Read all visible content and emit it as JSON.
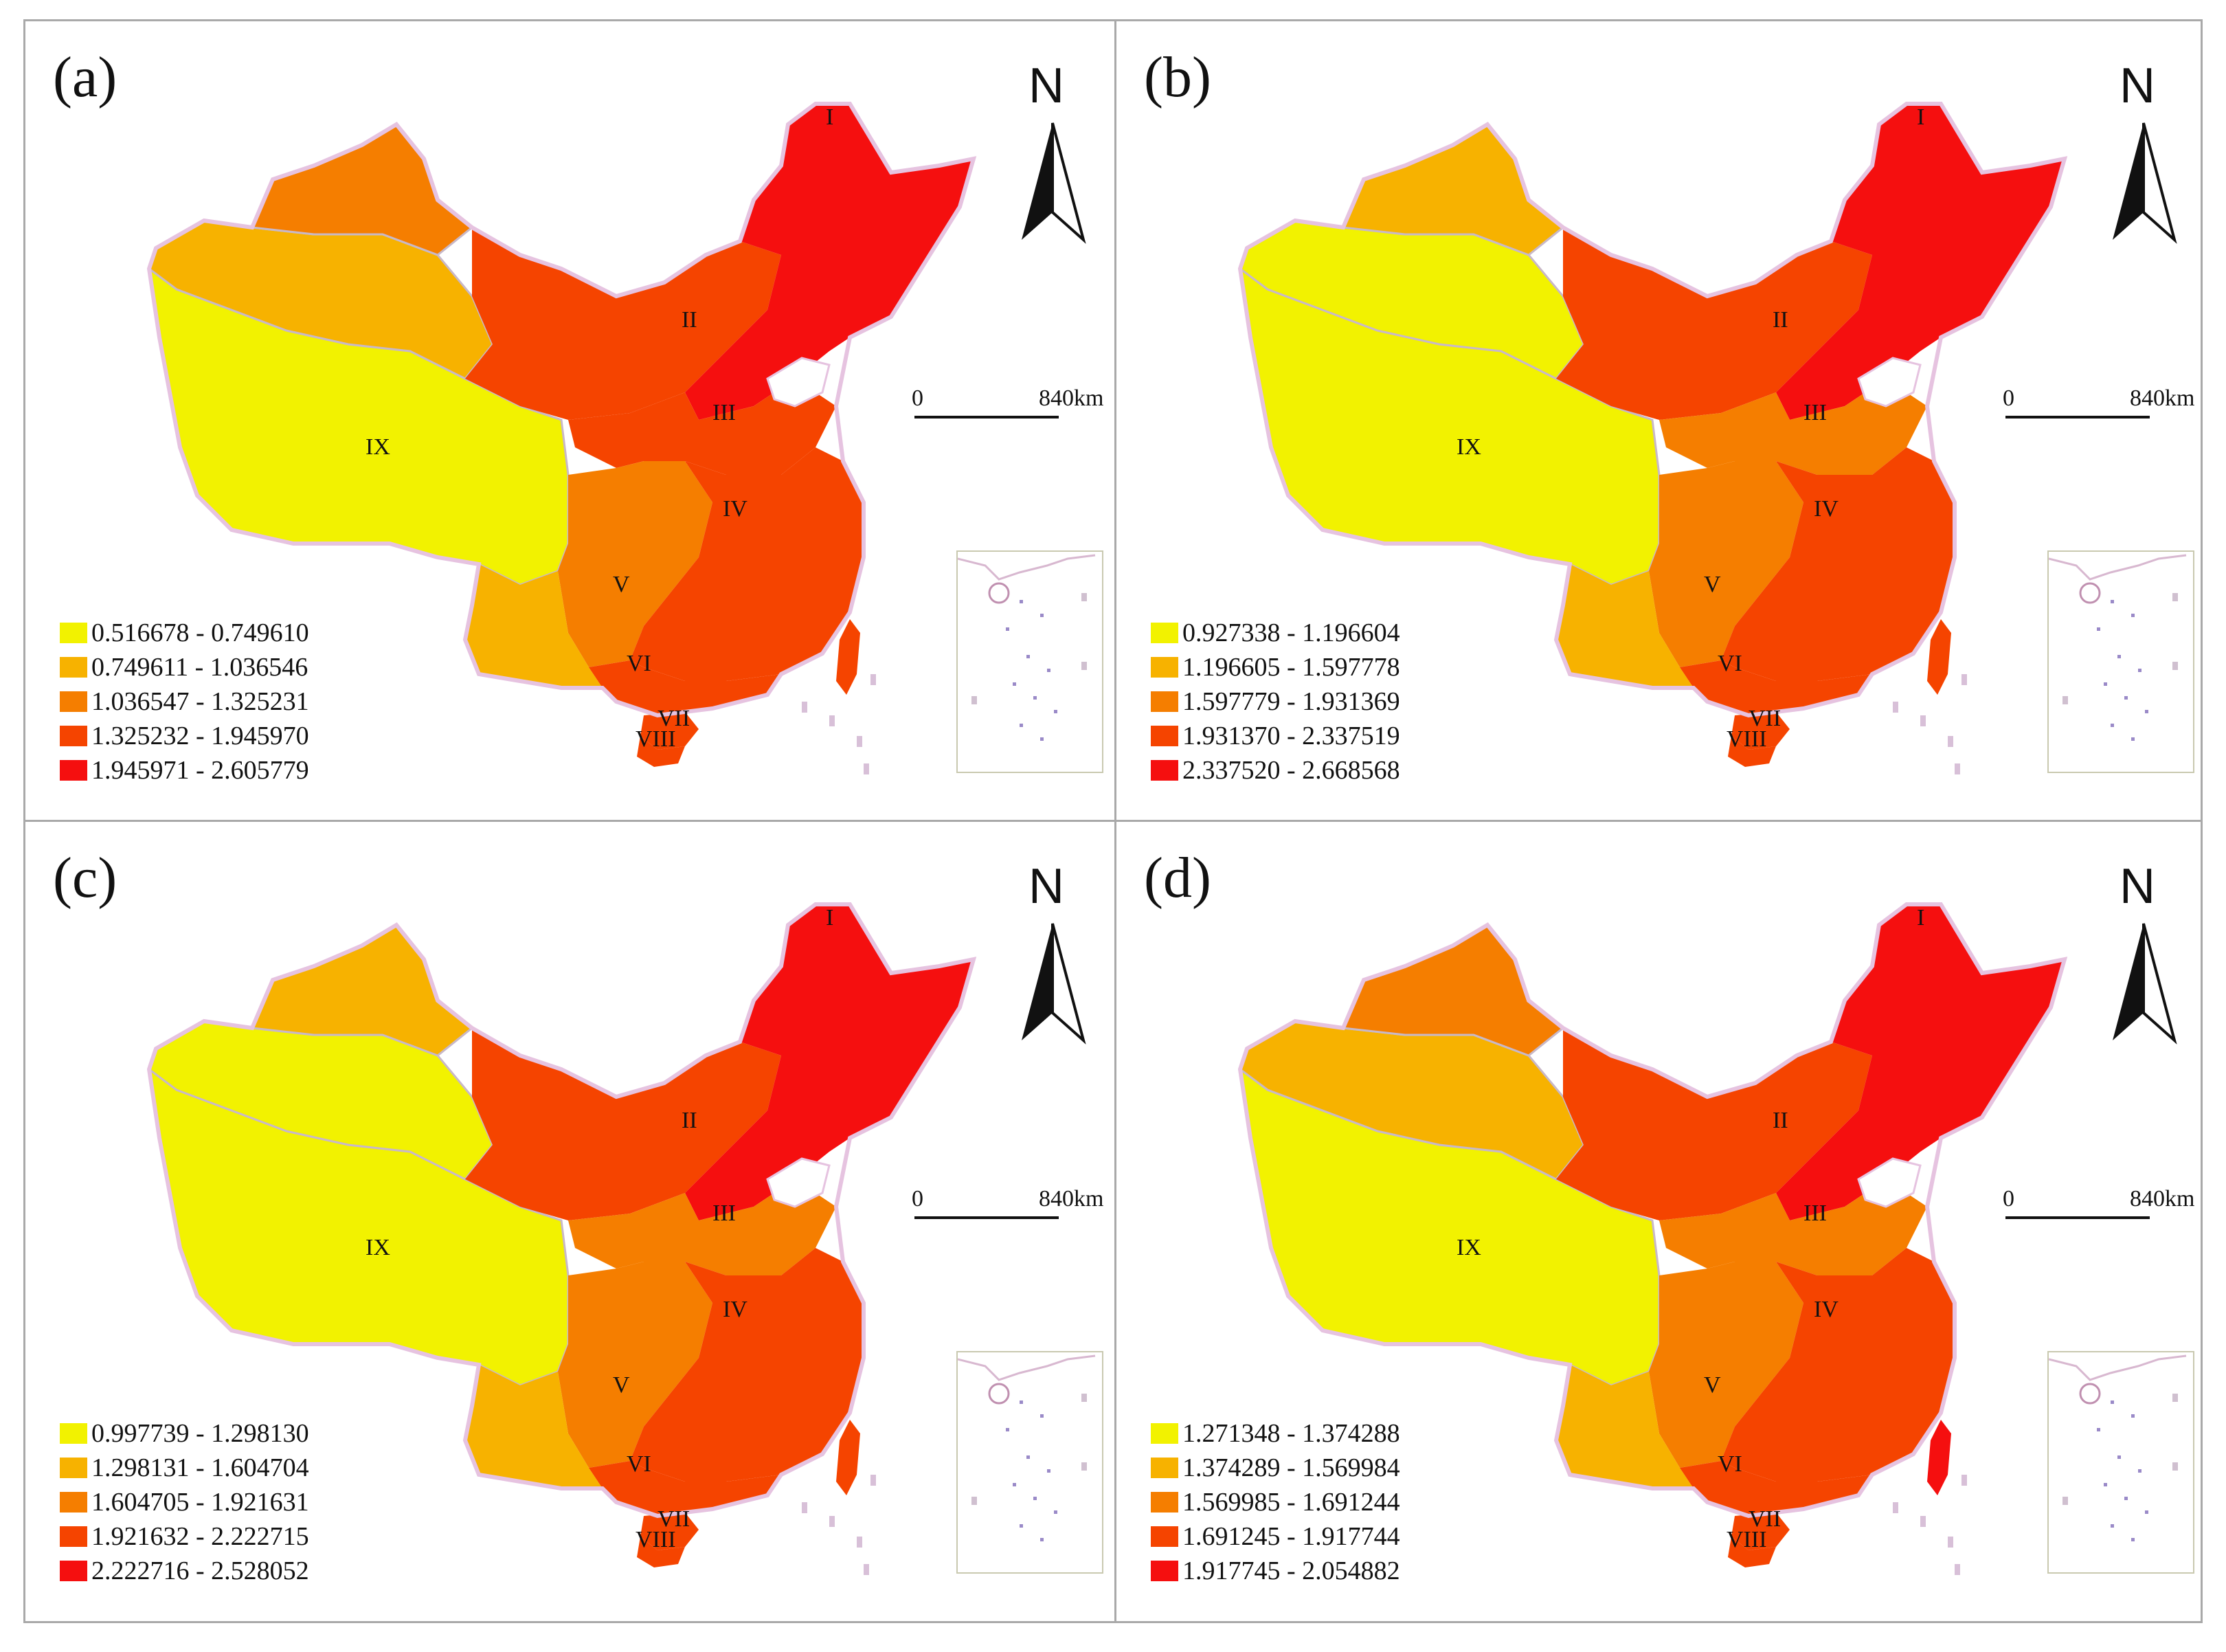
{
  "figure": {
    "north_label": "N",
    "scale_start": "0",
    "scale_end": "840km",
    "colors": [
      "#f2f200",
      "#f7b200",
      "#f57e00",
      "#f54400",
      "#f50f0f"
    ],
    "panels": [
      {
        "label": "(a)",
        "legend": [
          "0.516678 - 0.749610",
          "0.749611 - 1.036546",
          "1.036547 - 1.325231",
          "1.325232 - 1.945970",
          "1.945971 - 2.605779"
        ],
        "region_class": {
          "I": 4,
          "II": 3,
          "III": 3,
          "IV": 3,
          "V": 2,
          "VI": 3,
          "VII": 3,
          "VIII": 3,
          "IX": 0,
          "NW_N": 2,
          "NW_S": 1,
          "SW": 1,
          "TW": 3
        }
      },
      {
        "label": "(b)",
        "legend": [
          "0.927338 - 1.196604",
          "1.196605 - 1.597778",
          "1.597779 - 1.931369",
          "1.931370 - 2.337519",
          "2.337520 - 2.668568"
        ],
        "region_class": {
          "I": 4,
          "II": 3,
          "III": 2,
          "IV": 3,
          "V": 2,
          "VI": 3,
          "VII": 3,
          "VIII": 3,
          "IX": 0,
          "NW_N": 1,
          "NW_S": 0,
          "SW": 1,
          "TW": 3
        }
      },
      {
        "label": "(c)",
        "legend": [
          "0.997739 - 1.298130",
          "1.298131 - 1.604704",
          "1.604705 - 1.921631",
          "1.921632 - 2.222715",
          "2.222716 - 2.528052"
        ],
        "region_class": {
          "I": 4,
          "II": 3,
          "III": 2,
          "IV": 3,
          "V": 2,
          "VI": 3,
          "VII": 3,
          "VIII": 3,
          "IX": 0,
          "NW_N": 1,
          "NW_S": 0,
          "SW": 1,
          "TW": 3
        }
      },
      {
        "label": "(d)",
        "legend": [
          "1.271348 - 1.374288",
          "1.374289 - 1.569984",
          "1.569985 - 1.691244",
          "1.691245 - 1.917744",
          "1.917745 - 2.054882"
        ],
        "region_class": {
          "I": 4,
          "II": 3,
          "III": 2,
          "IV": 3,
          "V": 2,
          "VI": 3,
          "VII": 3,
          "VIII": 3,
          "IX": 0,
          "NW_N": 2,
          "NW_S": 1,
          "SW": 1,
          "TW": 4
        }
      }
    ],
    "region_labels": [
      "I",
      "II",
      "III",
      "IV",
      "V",
      "VI",
      "VII",
      "VIII",
      "IX"
    ]
  }
}
